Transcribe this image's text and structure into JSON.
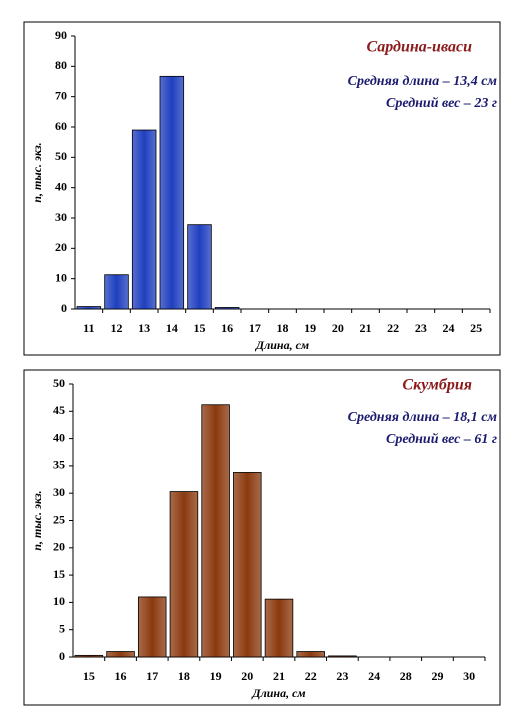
{
  "chart_data": [
    {
      "type": "bar",
      "title": "Сардина-иваси",
      "annotations": [
        "Средняя длина – 13,4 см",
        "Средний вес – 23 г"
      ],
      "xlabel": "Длина, см",
      "ylabel": "n, тыс. экз.",
      "categories": [
        "11",
        "12",
        "13",
        "14",
        "15",
        "16",
        "17",
        "18",
        "19",
        "20",
        "21",
        "22",
        "23",
        "24",
        "25"
      ],
      "values": [
        0.8,
        11.3,
        59,
        76.7,
        27.8,
        0.5,
        0,
        0,
        0,
        0,
        0,
        0,
        0,
        0,
        0
      ],
      "color": "#1f3fbf",
      "ylim": [
        0,
        90
      ],
      "yticks": [
        0,
        10,
        20,
        30,
        40,
        50,
        60,
        70,
        80,
        90
      ]
    },
    {
      "type": "bar",
      "title": "Скумбрия",
      "annotations": [
        "Средняя длина – 18,1 см",
        "Средний вес – 61 г"
      ],
      "xlabel": "Длина, см",
      "ylabel": "n, тыс. экз.",
      "categories": [
        "15",
        "16",
        "17",
        "18",
        "19",
        "20",
        "21",
        "22",
        "23",
        "24",
        "28",
        "29",
        "30"
      ],
      "values": [
        0.3,
        1,
        11,
        30.3,
        46.2,
        33.8,
        10.6,
        1,
        0.2,
        0,
        0,
        0,
        0
      ],
      "color": "#8b3a0f",
      "ylim": [
        0,
        50
      ],
      "yticks": [
        0,
        5,
        10,
        15,
        20,
        25,
        30,
        35,
        40,
        45,
        50
      ]
    }
  ]
}
